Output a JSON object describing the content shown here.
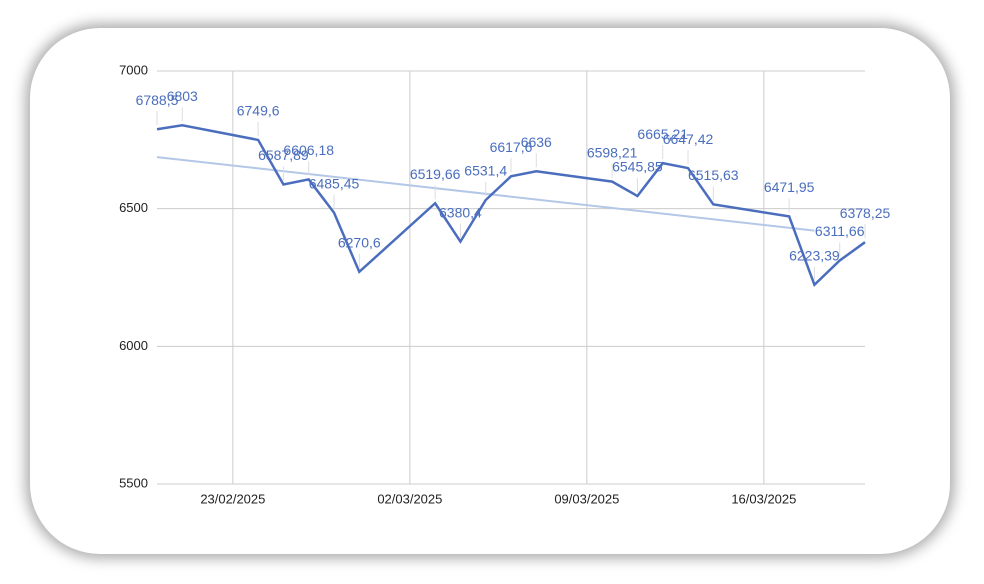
{
  "chart_data": {
    "type": "line",
    "x": [
      "20/02/2025",
      "21/02/2025",
      "24/02/2025",
      "25/02/2025",
      "26/02/2025",
      "27/02/2025",
      "28/02/2025",
      "03/03/2025",
      "04/03/2025",
      "05/03/2025",
      "06/03/2025",
      "07/03/2025",
      "10/03/2025",
      "11/03/2025",
      "12/03/2025",
      "13/03/2025",
      "14/03/2025",
      "17/03/2025",
      "18/03/2025",
      "19/03/2025",
      "20/03/2025"
    ],
    "series": [
      {
        "color": "#4a6ebd",
        "values": [
          6788.5,
          6803,
          6749.6,
          6587.89,
          6606.18,
          6485.45,
          6270.6,
          6519.66,
          6380.4,
          6531.4,
          6617.6,
          6636,
          6598.21,
          6545.85,
          6665.21,
          6647.42,
          6515.63,
          6471.95,
          6223.39,
          6311.66,
          6378.25
        ],
        "value_labels": [
          "6788,5",
          "6803",
          "6749,6",
          "6587,89",
          "6606,18",
          "6485,45",
          "6270,6",
          "6519,66",
          "6380,4",
          "6531,4",
          "6617,6",
          "6636",
          "6598,21",
          "6545,85",
          "6665,21",
          "6647,42",
          "6515,63",
          "6471,95",
          "6223,39",
          "6311,66",
          "6378,25"
        ]
      }
    ],
    "trendline": true,
    "trendline_color": "#b4c7e7",
    "xlim": [
      "20/02/2025",
      "20/03/2025"
    ],
    "xticks": [
      "23/02/2025",
      "02/03/2025",
      "09/03/2025",
      "16/03/2025"
    ],
    "ylim": [
      5500,
      7000
    ],
    "yticks": [
      5500,
      6000,
      6500,
      7000
    ],
    "grid": true
  }
}
